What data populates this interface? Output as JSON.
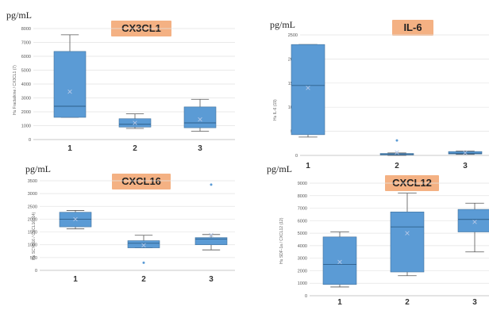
{
  "chart_data": [
    {
      "type": "box",
      "title": "CX3CL1",
      "unit_label": "pg/mL",
      "ylabel": "Hu Fractalkine / CX3CL1 (7)",
      "categories": [
        "1",
        "2",
        "3"
      ],
      "ylim": [
        0,
        8000
      ],
      "yticks": [
        0,
        1000,
        2000,
        3000,
        4000,
        5000,
        6000,
        7000,
        8000
      ],
      "boxes": [
        {
          "category": "1",
          "min": 1600,
          "q1": 1600,
          "median": 2400,
          "q3": 6350,
          "max": 7550,
          "mean": 3450,
          "outliers": []
        },
        {
          "category": "2",
          "min": 800,
          "q1": 900,
          "median": 1100,
          "q3": 1500,
          "max": 1850,
          "mean": 1200,
          "outliers": []
        },
        {
          "category": "3",
          "min": 600,
          "q1": 850,
          "median": 1200,
          "q3": 2350,
          "max": 2900,
          "mean": 1450,
          "outliers": []
        }
      ]
    },
    {
      "type": "box",
      "title": "IL-6",
      "unit_label": "pg/mL",
      "ylabel": "Hu IL-6 (19)",
      "categories": [
        "1",
        "2",
        "3"
      ],
      "ylim": [
        0,
        2500
      ],
      "yticks": [
        0,
        500,
        1000,
        1500,
        2000,
        2500
      ],
      "boxes": [
        {
          "category": "1",
          "min": 380,
          "q1": 430,
          "median": 1450,
          "q3": 2300,
          "max": 2300,
          "mean": 1400,
          "outliers": []
        },
        {
          "category": "2",
          "min": 0,
          "q1": 10,
          "median": 20,
          "q3": 40,
          "max": 50,
          "mean": 60,
          "outliers": [
            310
          ]
        },
        {
          "category": "3",
          "min": 20,
          "q1": 30,
          "median": 45,
          "q3": 80,
          "max": 90,
          "mean": 55,
          "outliers": []
        }
      ]
    },
    {
      "type": "box",
      "title": "CXCL16",
      "unit_label": "pg/mL",
      "ylabel": "Hu SCYB16 / CXCL16 (14)",
      "categories": [
        "1",
        "2",
        "3"
      ],
      "ylim": [
        0,
        3500
      ],
      "yticks": [
        0,
        500,
        1000,
        1500,
        2000,
        2500,
        3000,
        3500
      ],
      "boxes": [
        {
          "category": "1",
          "min": 1620,
          "q1": 1700,
          "median": 2000,
          "q3": 2270,
          "max": 2340,
          "mean": 2000,
          "outliers": []
        },
        {
          "category": "2",
          "min": 880,
          "q1": 880,
          "median": 1060,
          "q3": 1160,
          "max": 1370,
          "mean": 980,
          "outliers": [
            300
          ]
        },
        {
          "category": "3",
          "min": 800,
          "q1": 1000,
          "median": 1220,
          "q3": 1280,
          "max": 1400,
          "mean": 1380,
          "outliers": [
            3350
          ]
        }
      ]
    },
    {
      "type": "box",
      "title": "CXCL12",
      "unit_label": "pg/mL",
      "ylabel": "Hu SDF-1a / CXCL12 (12)",
      "categories": [
        "1",
        "2",
        "3"
      ],
      "ylim": [
        0,
        9000
      ],
      "yticks": [
        0,
        1000,
        2000,
        3000,
        4000,
        5000,
        6000,
        7000,
        8000,
        9000
      ],
      "boxes": [
        {
          "category": "1",
          "min": 700,
          "q1": 900,
          "median": 2500,
          "q3": 4700,
          "max": 5100,
          "mean": 2700,
          "outliers": []
        },
        {
          "category": "2",
          "min": 1600,
          "q1": 1900,
          "median": 5500,
          "q3": 6700,
          "max": 8200,
          "mean": 5000,
          "outliers": []
        },
        {
          "category": "3",
          "min": 3500,
          "q1": 5100,
          "median": 6100,
          "q3": 6900,
          "max": 7400,
          "mean": 5900,
          "outliers": []
        }
      ]
    }
  ]
}
